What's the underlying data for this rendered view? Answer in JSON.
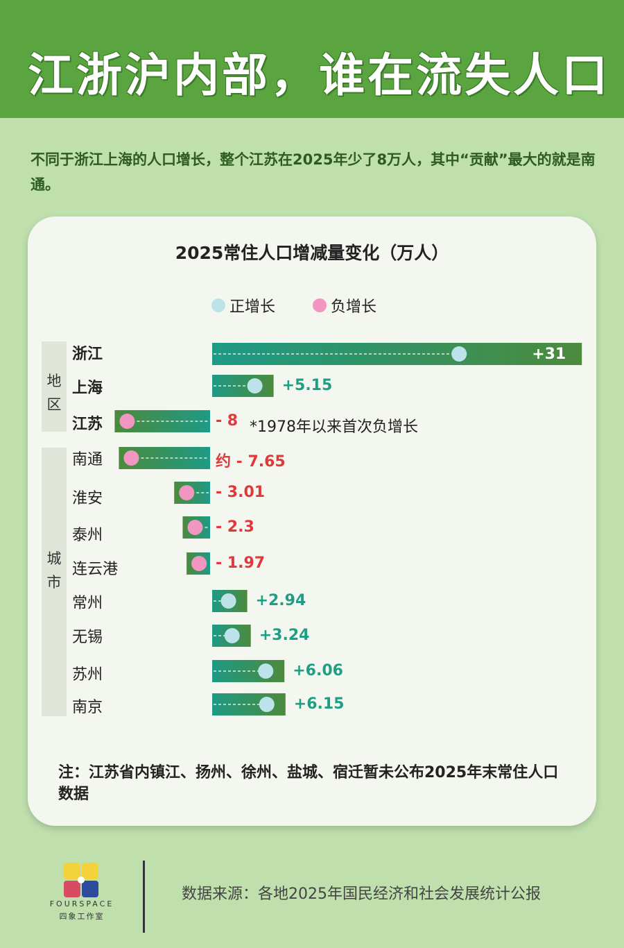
{
  "header": {
    "title": "江浙沪内部，谁在流失人口"
  },
  "intro": "不同于浙江上海的人口增长，整个江苏在2025年少了8万人，其中“贡献”最大的就是南通。",
  "colors": {
    "positive": "#1f9e84",
    "negative": "#e0393b",
    "positive_dot": "#bde3ea",
    "negative_dot": "#f196c0"
  },
  "legend": {
    "positive": "正增长",
    "negative": "负增长"
  },
  "groups": {
    "region": "地区",
    "city": "城市"
  },
  "chart_data": {
    "type": "bar",
    "title": "2025常住人口增减量变化（万人）",
    "orientation": "horizontal-diverging",
    "categories": [
      "浙江",
      "上海",
      "江苏",
      "南通",
      "淮安",
      "泰州",
      "连云港",
      "常州",
      "无锡",
      "苏州",
      "南京"
    ],
    "values": [
      31,
      5.15,
      -8,
      -7.65,
      -3.01,
      -2.3,
      -1.97,
      2.94,
      3.24,
      6.06,
      6.15
    ],
    "value_labels": [
      "+31",
      "+5.15",
      "- 8",
      "约 - 7.65",
      "- 3.01",
      "- 2.3",
      "- 1.97",
      "+2.94",
      "+3.24",
      "+6.06",
      "+6.15"
    ],
    "annotation": "*1978年以来首次负增长",
    "legend": [
      "正增长",
      "负增长"
    ],
    "legend_position": "top"
  },
  "note": "注：江苏省内镇江、扬州、徐州、盐城、宿迁暂未公布2025年末常住人口数据",
  "footer": {
    "source": "数据来源：各地2025年国民经济和社会发展统计公报",
    "logo_text": "FOURSPACE",
    "logo_cn": "四象工作室"
  }
}
